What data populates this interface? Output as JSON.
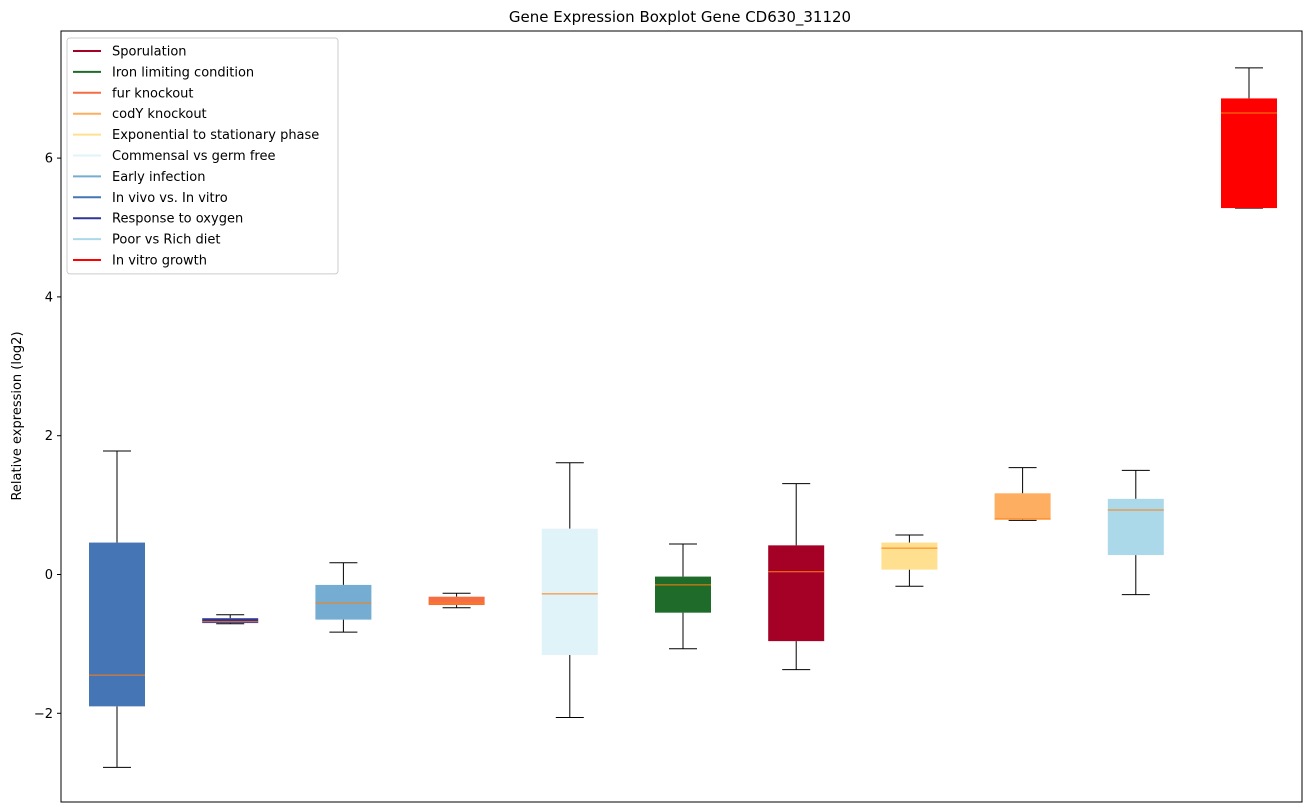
{
  "chart_data": {
    "type": "boxplot",
    "title": "Gene Expression Boxplot Gene CD630_31120",
    "xlabel": "",
    "ylabel": "Relative expression (log2)",
    "ylim": [
      -3.2,
      7.8
    ],
    "yticks": [
      -2,
      0,
      2,
      4,
      6
    ],
    "ytick_labels": [
      "−2",
      "0",
      "2",
      "4",
      "6"
    ],
    "grid": false,
    "legend_position": "top-left",
    "median_color": "#ff7f0e",
    "legend": [
      {
        "label": "Sporulation",
        "color": "#a50026"
      },
      {
        "label": "Iron limiting condition",
        "color": "#1f6b2a"
      },
      {
        "label": "fur knockout",
        "color": "#f46d43"
      },
      {
        "label": "codY knockout",
        "color": "#fdae61"
      },
      {
        "label": "Exponential to stationary phase",
        "color": "#fee090"
      },
      {
        "label": "Commensal vs germ free",
        "color": "#e0f3f8"
      },
      {
        "label": "Early infection",
        "color": "#74add1"
      },
      {
        "label": "In vivo vs. In vitro",
        "color": "#4575b4"
      },
      {
        "label": "Response to oxygen",
        "color": "#313695"
      },
      {
        "label": "Poor vs Rich diet",
        "color": "#abd9e9"
      },
      {
        "label": "In vitro growth",
        "color": "#ff0000"
      }
    ],
    "boxes": [
      {
        "condition": "In vivo vs. In vitro",
        "color": "#4575b4",
        "whisker_low": -2.78,
        "q1": -1.9,
        "median": -1.45,
        "q3": 0.46,
        "whisker_high": 1.78
      },
      {
        "condition": "Response to oxygen",
        "color": "#313695",
        "whisker_low": -0.71,
        "q1": -0.7,
        "median": -0.68,
        "q3": -0.63,
        "whisker_high": -0.58
      },
      {
        "condition": "Early infection",
        "color": "#74add1",
        "whisker_low": -0.83,
        "q1": -0.65,
        "median": -0.41,
        "q3": -0.15,
        "whisker_high": 0.17
      },
      {
        "condition": "fur knockout",
        "color": "#f46d43",
        "whisker_low": -0.48,
        "q1": -0.44,
        "median": -0.41,
        "q3": -0.32,
        "whisker_high": -0.27
      },
      {
        "condition": "Commensal vs germ free",
        "color": "#e0f3f8",
        "whisker_low": -2.06,
        "q1": -1.16,
        "median": -0.28,
        "q3": 0.66,
        "whisker_high": 1.61
      },
      {
        "condition": "Iron limiting condition",
        "color": "#1f6b2a",
        "whisker_low": -1.07,
        "q1": -0.55,
        "median": -0.15,
        "q3": -0.03,
        "whisker_high": 0.44
      },
      {
        "condition": "Sporulation",
        "color": "#a50026",
        "whisker_low": -1.37,
        "q1": -0.96,
        "median": 0.04,
        "q3": 0.42,
        "whisker_high": 1.31
      },
      {
        "condition": "Exponential to stationary phase",
        "color": "#fee090",
        "whisker_low": -0.17,
        "q1": 0.07,
        "median": 0.38,
        "q3": 0.46,
        "whisker_high": 0.57
      },
      {
        "condition": "codY knockout",
        "color": "#fdae61",
        "whisker_low": 0.78,
        "q1": 0.79,
        "median": 0.8,
        "q3": 1.17,
        "whisker_high": 1.54
      },
      {
        "condition": "Poor vs Rich diet",
        "color": "#abd9e9",
        "whisker_low": -0.29,
        "q1": 0.28,
        "median": 0.93,
        "q3": 1.09,
        "whisker_high": 1.5
      },
      {
        "condition": "In vitro growth",
        "color": "#ff0000",
        "whisker_low": 5.28,
        "q1": 5.28,
        "median": 6.65,
        "q3": 6.86,
        "whisker_high": 7.3
      }
    ]
  }
}
